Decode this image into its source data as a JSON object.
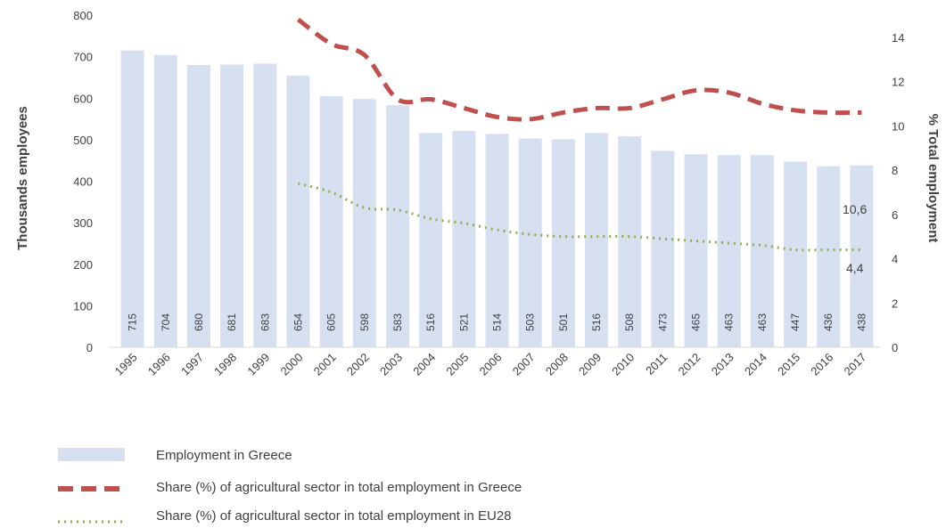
{
  "chart_data": {
    "type": "bar",
    "categories": [
      "1995",
      "1996",
      "1997",
      "1998",
      "1999",
      "2000",
      "2001",
      "2002",
      "2003",
      "2004",
      "2005",
      "2006",
      "2007",
      "2008",
      "2009",
      "2010",
      "2011",
      "2012",
      "2013",
      "2014",
      "2015",
      "2016",
      "2017"
    ],
    "series": [
      {
        "name": "Employment in Greece",
        "type": "bar",
        "axis": "left",
        "color": "#d6e0f0",
        "values": [
          715,
          704,
          680,
          681,
          683,
          654,
          605,
          598,
          583,
          516,
          521,
          514,
          503,
          501,
          516,
          508,
          473,
          465,
          463,
          463,
          447,
          436,
          438
        ]
      },
      {
        "name": "Share (%) of agricultural sector in total employment in Greece",
        "type": "line",
        "style": "dashed",
        "axis": "right",
        "color": "#c0504d",
        "values": [
          null,
          null,
          null,
          null,
          null,
          14.8,
          13.7,
          13.2,
          11.2,
          11.2,
          10.8,
          10.4,
          10.3,
          10.6,
          10.8,
          10.8,
          11.2,
          11.6,
          11.5,
          11.0,
          10.7,
          10.6,
          10.6
        ],
        "end_label": "10,6"
      },
      {
        "name": "Share (%) of agricultural sector in total employment in EU28",
        "type": "line",
        "style": "dotted",
        "axis": "right",
        "color": "#8db04c",
        "values": [
          null,
          null,
          null,
          null,
          null,
          7.4,
          7.0,
          6.3,
          6.2,
          5.8,
          5.6,
          5.3,
          5.1,
          5.0,
          5.0,
          5.0,
          4.9,
          4.8,
          4.7,
          4.6,
          4.4,
          4.4,
          4.4
        ],
        "end_label": "4,4"
      }
    ],
    "ylabel_left": "Thousands employees",
    "ylabel_right": "% Total employment",
    "ylim_left": [
      0,
      800
    ],
    "yticks_left": [
      "0",
      "100",
      "200",
      "300",
      "400",
      "500",
      "600",
      "700",
      "800"
    ],
    "ylim_right": [
      0,
      15
    ],
    "yticks_right": [
      "0",
      "2",
      "4",
      "6",
      "8",
      "10",
      "12",
      "14"
    ],
    "grid": false,
    "legend_position": "bottom-left"
  }
}
